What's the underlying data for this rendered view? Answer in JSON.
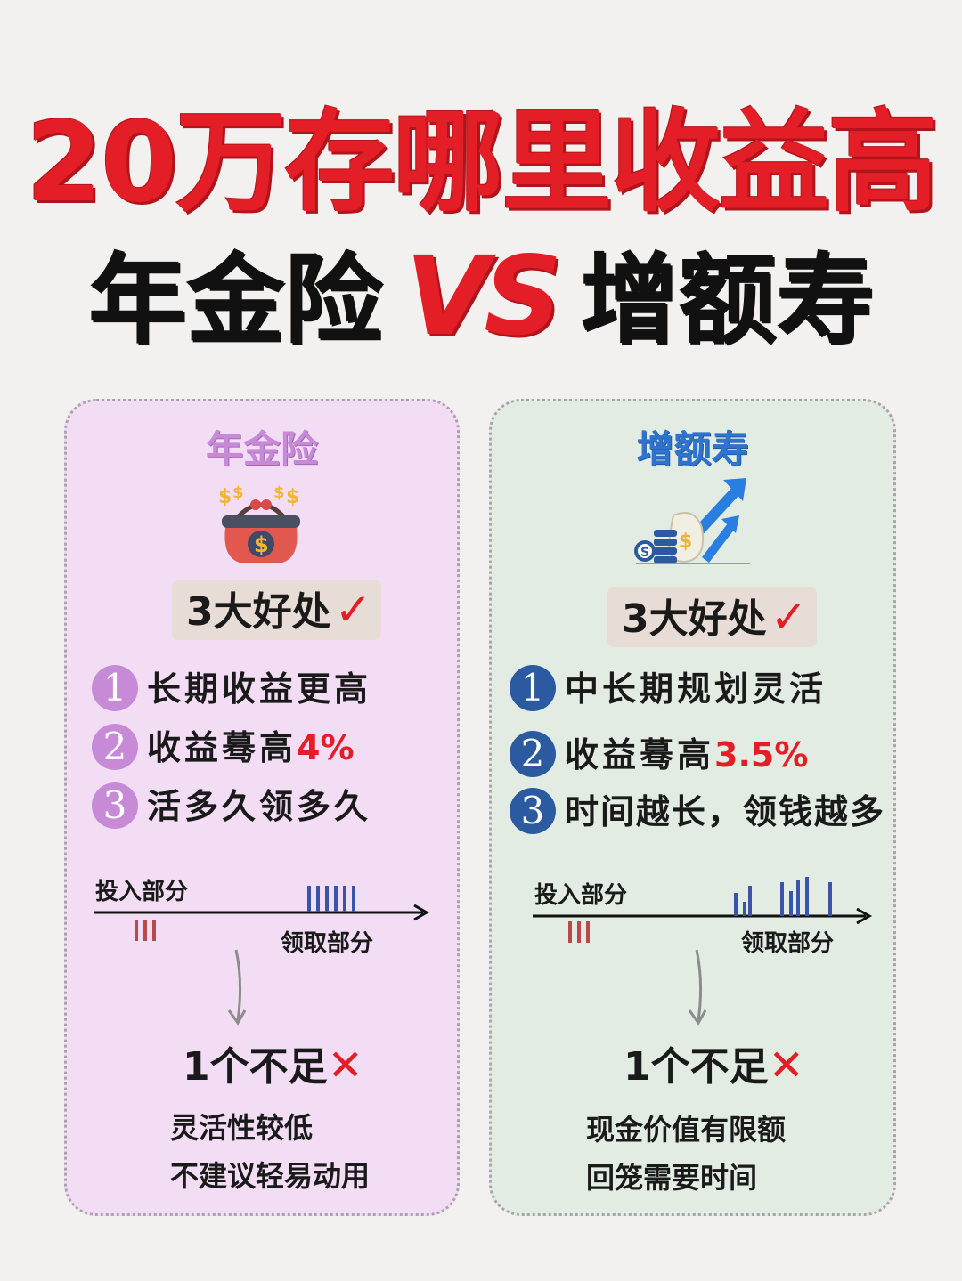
{
  "header": {
    "title": "20万存哪里收益高",
    "subtitle_left": "年金险",
    "subtitle_vs": "VS",
    "subtitle_right": "增额寿"
  },
  "left_card": {
    "title": "年金险",
    "icon": "money-bag-icon",
    "benefits_label": "3大好处",
    "benefits": [
      {
        "num": "1",
        "text": "长期收益更高",
        "highlight": ""
      },
      {
        "num": "2",
        "text": "收益蓦高",
        "highlight": "4%"
      },
      {
        "num": "3",
        "text": "活多久领多久",
        "highlight": ""
      }
    ],
    "timeline": {
      "input_label": "投入部分",
      "receive_label": "领取部分"
    },
    "weakness_label": "1个不足",
    "weaknesses": [
      "灵活性较低",
      "不建议轻易动用"
    ]
  },
  "right_card": {
    "title": "增额寿",
    "icon": "growth-money-icon",
    "benefits_label": "3大好处",
    "benefits": [
      {
        "num": "1",
        "text": "中长期规划灵活",
        "highlight": ""
      },
      {
        "num": "2",
        "text": "收益蓦高",
        "highlight": "3.5%"
      },
      {
        "num": "3",
        "text": "时间越长，领钱越多",
        "highlight": ""
      }
    ],
    "timeline": {
      "input_label": "投入部分",
      "receive_label": "领取部分"
    },
    "weakness_label": "1个不足",
    "weaknesses": [
      "现金价值有限额",
      "回笼需要时间"
    ]
  },
  "colors": {
    "accent_red": "#e41e26",
    "left_purple": "#c78ad6",
    "right_blue": "#2c5aa0",
    "bar_red": "#b94a4a",
    "bar_blue": "#3a55a8"
  }
}
